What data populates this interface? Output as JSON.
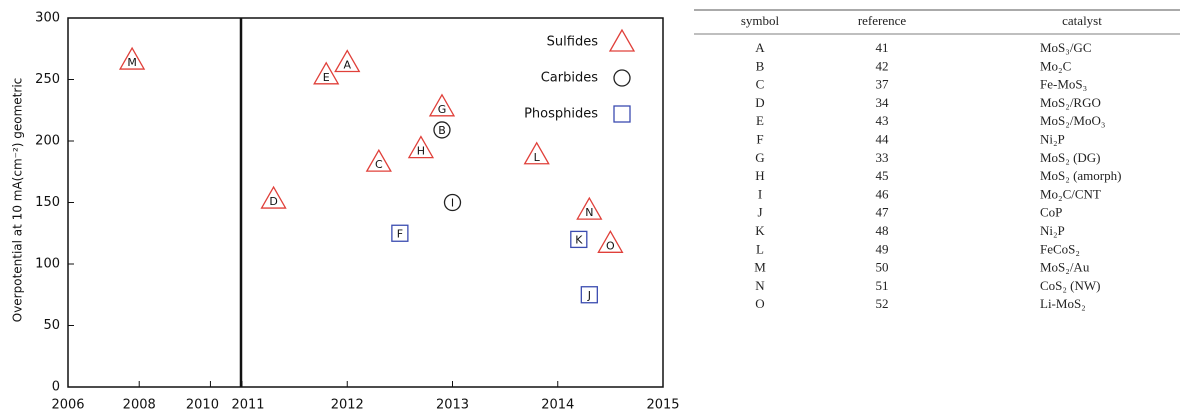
{
  "chart_data": {
    "type": "scatter",
    "y_label": "Overpotential at 10 mA(cm⁻²) geometric",
    "ylim": [
      0,
      300
    ],
    "yticks": [
      0,
      50,
      100,
      150,
      200,
      250,
      300
    ],
    "x_panels": [
      {
        "xlim": [
          2006,
          2010.83
        ],
        "xticks": [
          2006,
          2008,
          2010
        ]
      },
      {
        "xlim": [
          2011,
          2015
        ],
        "xticks": [
          2011,
          2012,
          2013,
          2014,
          2015
        ]
      }
    ],
    "legend": "upper right",
    "series": [
      {
        "name": "Sulfides",
        "marker": "triangle",
        "color": "#e0403a",
        "x": [
          2007.8,
          2011.8,
          2012.0,
          2011.3,
          2012.3,
          2012.7,
          2012.9,
          2013.8,
          2014.3,
          2014.5
        ],
        "values": [
          265,
          253,
          263,
          152,
          182,
          193,
          227,
          188,
          143,
          116
        ],
        "point_labels": [
          "M",
          "E",
          "A",
          "D",
          "C",
          "H",
          "G",
          "L",
          "N",
          "O"
        ]
      },
      {
        "name": "Carbides",
        "marker": "circle",
        "color": "#222222",
        "x": [
          2012.9,
          2013.0
        ],
        "values": [
          209,
          150
        ],
        "point_labels": [
          "B",
          "I"
        ]
      },
      {
        "name": "Phosphides",
        "marker": "square",
        "color": "#3b4cb0",
        "x": [
          2012.5,
          2014.2,
          2014.3
        ],
        "values": [
          125,
          120,
          75
        ],
        "point_labels": [
          "F",
          "K",
          "J"
        ]
      }
    ]
  },
  "table": {
    "columns": [
      "symbol",
      "reference",
      "catalyst"
    ],
    "rows": [
      [
        "A",
        41,
        "MoS₃/GC"
      ],
      [
        "B",
        42,
        "Mo₂C"
      ],
      [
        "C",
        37,
        "Fe-MoS₃"
      ],
      [
        "D",
        34,
        "MoS₂/RGO"
      ],
      [
        "E",
        43,
        "MoS₂/MoO₃"
      ],
      [
        "F",
        44,
        "Ni₂P"
      ],
      [
        "G",
        33,
        "MoS₂ (DG)"
      ],
      [
        "H",
        45,
        "MoS₂ (amorph)"
      ],
      [
        "I",
        46,
        "Mo₂C/CNT"
      ],
      [
        "J",
        47,
        "CoP"
      ],
      [
        "K",
        48,
        "Ni₂P"
      ],
      [
        "L",
        49,
        "FeCoS₂"
      ],
      [
        "M",
        50,
        "MoS₂/Au"
      ],
      [
        "N",
        51,
        "CoS₂ (NW)"
      ],
      [
        "O",
        52,
        "Li-MoS₂"
      ]
    ]
  }
}
